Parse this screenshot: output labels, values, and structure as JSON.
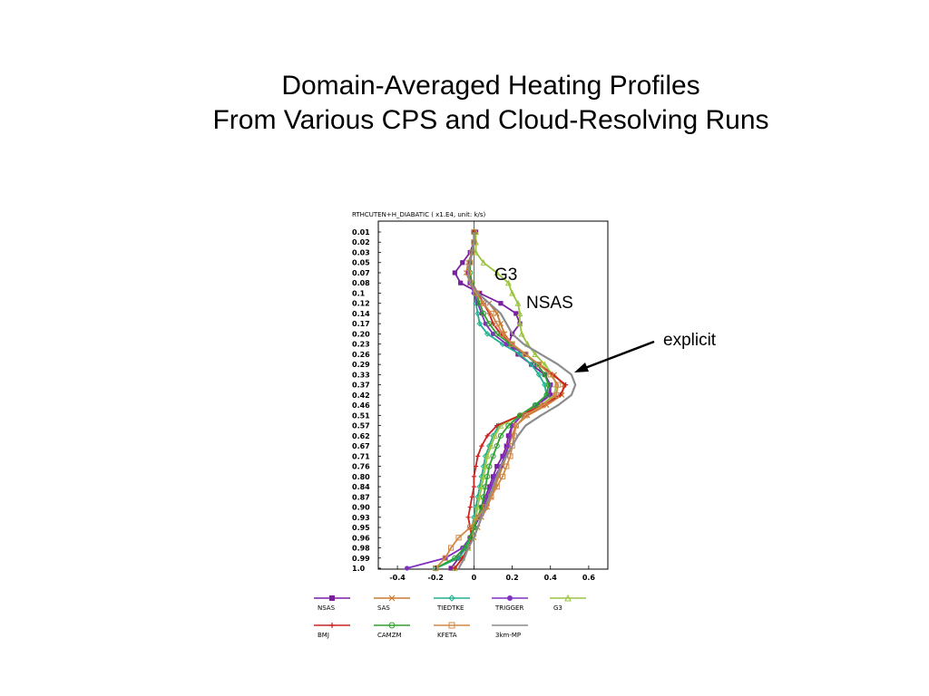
{
  "slide": {
    "title_line1": "Domain-Averaged Heating Profiles",
    "title_line2": "From Various CPS and Cloud-Resolving Runs"
  },
  "annotations": {
    "g3": "G3",
    "nsas": "NSAS",
    "explicit": "explicit"
  },
  "chart_data": {
    "type": "line",
    "title": "RTHCUTEN+H_DIABATIC ( x1.E4, unit: k/s)",
    "xlabel": "",
    "ylabel": "",
    "xlim": [
      -0.5,
      0.7
    ],
    "x_ticks": [
      "-0.4",
      "-0.2",
      "0",
      "0.2",
      "0.4",
      "0.6"
    ],
    "x_tick_values": [
      -0.4,
      -0.2,
      0,
      0.2,
      0.4,
      0.6
    ],
    "levels": [
      "0.01",
      "0.02",
      "0.03",
      "0.05",
      "0.07",
      "0.08",
      "0.1",
      "0.12",
      "0.14",
      "0.17",
      "0.20",
      "0.23",
      "0.26",
      "0.29",
      "0.33",
      "0.37",
      "0.42",
      "0.46",
      "0.51",
      "0.57",
      "0.62",
      "0.67",
      "0.71",
      "0.76",
      "0.80",
      "0.84",
      "0.87",
      "0.90",
      "0.93",
      "0.95",
      "0.96",
      "0.98",
      "0.99",
      "1.0"
    ],
    "y_direction": "top-to-bottom",
    "legend_position": "bottom",
    "series": [
      {
        "name": "NSAS",
        "color": "#7b1fa2",
        "marker": "square-filled",
        "values": [
          0.01,
          0.0,
          -0.02,
          -0.06,
          -0.1,
          -0.07,
          0.03,
          0.14,
          0.22,
          0.24,
          0.2,
          0.18,
          0.23,
          0.3,
          0.37,
          0.4,
          0.4,
          0.33,
          0.25,
          0.2,
          0.18,
          0.17,
          0.15,
          0.12,
          0.1,
          0.08,
          0.06,
          0.04,
          0.02,
          0.0,
          -0.02,
          -0.05,
          -0.08,
          -0.12
        ]
      },
      {
        "name": "SAS",
        "color": "#cc7a30",
        "marker": "x",
        "values": [
          0.0,
          0.0,
          -0.01,
          -0.03,
          -0.04,
          -0.02,
          0.02,
          0.08,
          0.12,
          0.14,
          0.16,
          0.2,
          0.27,
          0.34,
          0.42,
          0.47,
          0.46,
          0.38,
          0.28,
          0.22,
          0.2,
          0.18,
          0.17,
          0.15,
          0.13,
          0.11,
          0.09,
          0.07,
          0.04,
          0.02,
          0.0,
          -0.03,
          -0.06,
          -0.1
        ]
      },
      {
        "name": "TIEDTKE",
        "color": "#20b090",
        "marker": "diamond",
        "values": [
          0.0,
          0.0,
          -0.01,
          -0.02,
          -0.03,
          -0.02,
          0.0,
          0.01,
          0.02,
          0.03,
          0.07,
          0.15,
          0.24,
          0.3,
          0.34,
          0.37,
          0.38,
          0.32,
          0.24,
          0.13,
          0.1,
          0.08,
          0.06,
          0.05,
          0.04,
          0.03,
          0.02,
          0.01,
          0.0,
          -0.01,
          -0.02,
          -0.04,
          -0.08,
          -0.2
        ]
      },
      {
        "name": "TRIGGER",
        "color": "#8030c0",
        "marker": "circle-filled",
        "values": [
          0.0,
          0.0,
          -0.01,
          -0.02,
          -0.03,
          -0.02,
          0.0,
          0.02,
          0.04,
          0.06,
          0.1,
          0.17,
          0.27,
          0.33,
          0.37,
          0.4,
          0.39,
          0.33,
          0.25,
          0.2,
          0.19,
          0.18,
          0.16,
          0.14,
          0.11,
          0.09,
          0.07,
          0.05,
          0.03,
          0.0,
          -0.02,
          -0.06,
          -0.15,
          -0.35
        ]
      },
      {
        "name": "G3",
        "color": "#9ac440",
        "marker": "triangle",
        "values": [
          0.01,
          0.01,
          0.01,
          0.05,
          0.12,
          0.18,
          0.2,
          0.23,
          0.24,
          0.24,
          0.25,
          0.28,
          0.32,
          0.37,
          0.41,
          0.43,
          0.42,
          0.35,
          0.24,
          0.14,
          0.11,
          0.09,
          0.07,
          0.06,
          0.05,
          0.04,
          0.03,
          0.02,
          0.01,
          0.0,
          -0.01,
          -0.03,
          -0.06,
          -0.1
        ]
      },
      {
        "name": "BMJ",
        "color": "#cc2222",
        "marker": "plus",
        "values": [
          0.0,
          0.0,
          -0.01,
          -0.02,
          -0.03,
          -0.01,
          0.02,
          0.05,
          0.08,
          0.1,
          0.14,
          0.2,
          0.27,
          0.34,
          0.41,
          0.48,
          0.45,
          0.36,
          0.24,
          0.12,
          0.07,
          0.04,
          0.02,
          0.01,
          0.0,
          0.0,
          -0.01,
          -0.02,
          -0.03,
          -0.02,
          -0.01,
          -0.03,
          -0.06,
          -0.1
        ]
      },
      {
        "name": "CAMZM",
        "color": "#30a030",
        "marker": "circle",
        "values": [
          0.0,
          0.0,
          -0.01,
          -0.02,
          -0.02,
          -0.01,
          0.01,
          0.03,
          0.05,
          0.08,
          0.12,
          0.19,
          0.27,
          0.33,
          0.37,
          0.39,
          0.38,
          0.32,
          0.24,
          0.18,
          0.14,
          0.12,
          0.1,
          0.08,
          0.07,
          0.06,
          0.05,
          0.04,
          0.02,
          0.0,
          -0.02,
          -0.05,
          -0.1,
          -0.2
        ]
      },
      {
        "name": "KFETA",
        "color": "#d08848",
        "marker": "square",
        "values": [
          0.0,
          0.0,
          -0.01,
          -0.02,
          -0.03,
          -0.02,
          0.01,
          0.05,
          0.09,
          0.12,
          0.15,
          0.2,
          0.27,
          0.34,
          0.4,
          0.44,
          0.43,
          0.36,
          0.27,
          0.22,
          0.21,
          0.2,
          0.19,
          0.17,
          0.15,
          0.12,
          0.09,
          0.06,
          0.02,
          -0.02,
          -0.08,
          -0.12,
          -0.15,
          -0.2
        ]
      },
      {
        "name": "3km-MP",
        "color": "#8c8c8c",
        "marker": "none",
        "values": [
          0.0,
          0.0,
          -0.01,
          -0.02,
          -0.03,
          -0.02,
          0.02,
          0.08,
          0.14,
          0.17,
          0.2,
          0.26,
          0.35,
          0.44,
          0.51,
          0.53,
          0.51,
          0.44,
          0.35,
          0.27,
          0.23,
          0.2,
          0.17,
          0.14,
          0.12,
          0.1,
          0.08,
          0.06,
          0.04,
          0.02,
          0.0,
          -0.03,
          -0.05,
          -0.08
        ]
      }
    ]
  }
}
